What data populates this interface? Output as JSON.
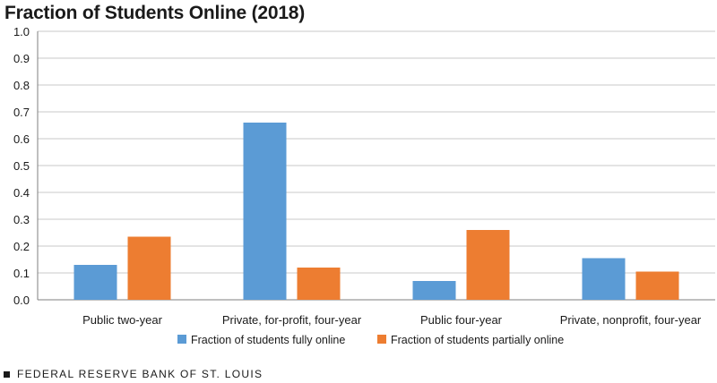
{
  "title": "Fraction of Students Online (2018)",
  "footer": "FEDERAL RESERVE BANK OF ST. LOUIS",
  "chart_data": {
    "type": "bar",
    "title": "Fraction of Students Online (2018)",
    "xlabel": "",
    "ylabel": "",
    "ylim": [
      0,
      1.0
    ],
    "yticks": [
      "0.0",
      "0.1",
      "0.2",
      "0.3",
      "0.4",
      "0.5",
      "0.6",
      "0.7",
      "0.8",
      "0.9",
      "1.0"
    ],
    "grid": true,
    "legend_position": "bottom",
    "categories": [
      "Public two-year",
      "Private, for-profit, four-year",
      "Public four-year",
      "Private, nonprofit, four-year"
    ],
    "series": [
      {
        "name": "Fraction of students fully online",
        "color": "#5b9bd5",
        "values": [
          0.13,
          0.66,
          0.07,
          0.155
        ]
      },
      {
        "name": "Fraction of students partially online",
        "color": "#ed7d31",
        "values": [
          0.235,
          0.12,
          0.26,
          0.105
        ]
      }
    ]
  }
}
